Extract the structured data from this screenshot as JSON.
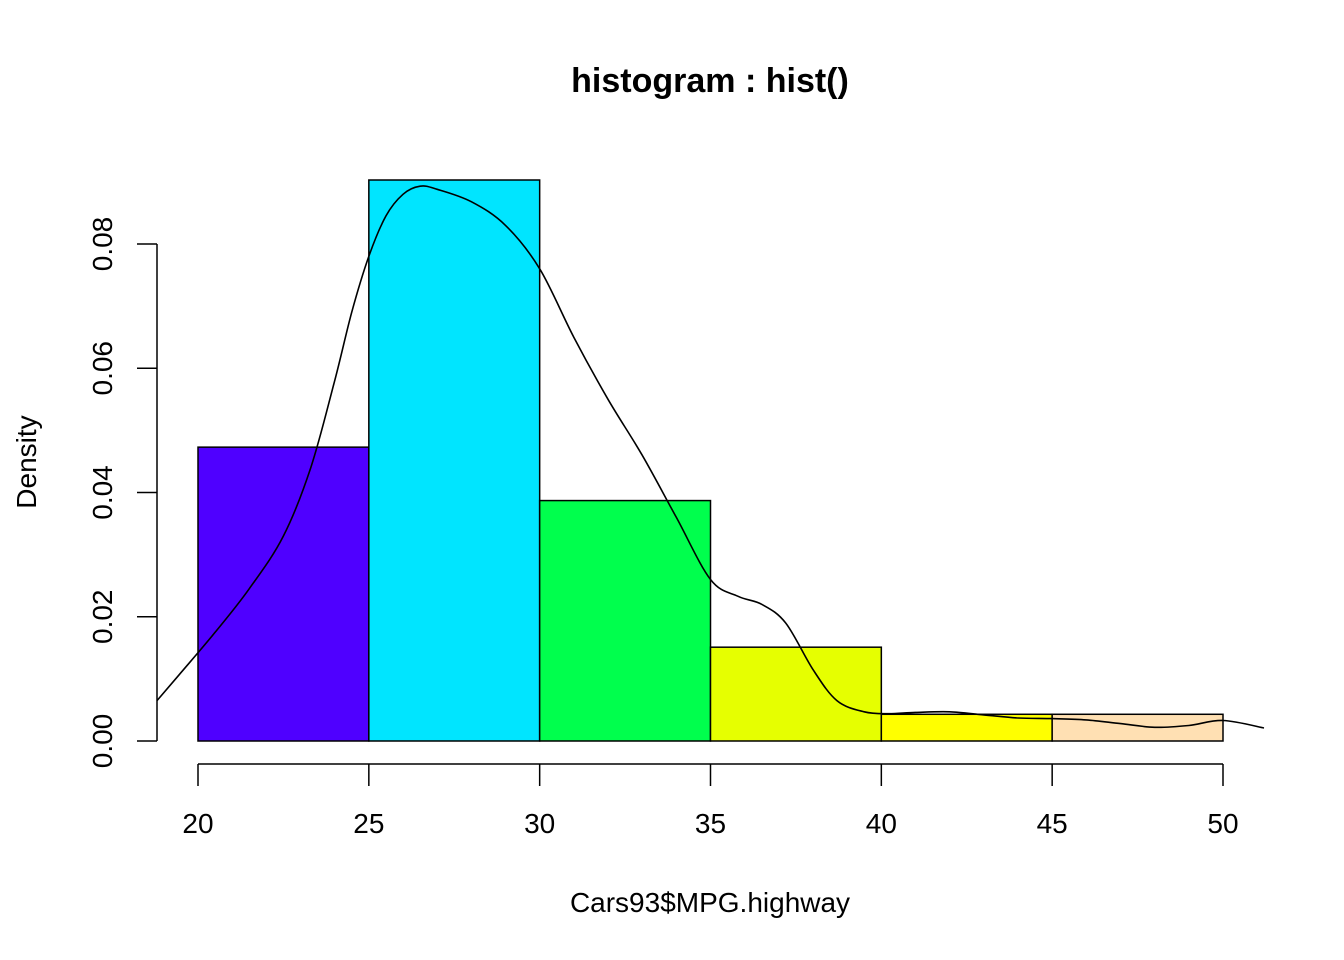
{
  "chart_data": {
    "type": "bar",
    "subtype": "histogram",
    "title": "histogram : hist()",
    "xlabel": "Cars93$MPG.highway",
    "ylabel": "Density",
    "bin_edges": [
      20,
      25,
      30,
      35,
      40,
      45,
      50
    ],
    "values": [
      0.0473,
      0.0903,
      0.0387,
      0.0151,
      0.0043,
      0.0043
    ],
    "bar_colors": [
      "#4F00FF",
      "#00E5FF",
      "#00FF4D",
      "#E6FF00",
      "#FFFF00",
      "#FFE0B3"
    ],
    "xlim": [
      18.8,
      51.2
    ],
    "ylim": [
      0,
      0.0903
    ],
    "x_ticks": [
      20,
      25,
      30,
      35,
      40,
      45,
      50
    ],
    "x_tick_labels": [
      "20",
      "25",
      "30",
      "35",
      "40",
      "45",
      "50"
    ],
    "y_ticks": [
      0,
      0.02,
      0.04,
      0.06,
      0.08
    ],
    "y_tick_labels": [
      "0.00",
      "0.02",
      "0.04",
      "0.06",
      "0.08"
    ],
    "grid": false,
    "density_curve": {
      "x": [
        18.8,
        19.5,
        20.5,
        21.5,
        22.5,
        23.3,
        24,
        24.5,
        25,
        25.5,
        26,
        26.5,
        27,
        28,
        29,
        30,
        31,
        32,
        33,
        34,
        35,
        35.8,
        36.5,
        37.2,
        38,
        38.7,
        39.5,
        40.2,
        41,
        42,
        43,
        44,
        45,
        46,
        47,
        48,
        49,
        50,
        51.2
      ],
      "y": [
        0.0065,
        0.011,
        0.0175,
        0.0245,
        0.033,
        0.044,
        0.058,
        0.069,
        0.078,
        0.0845,
        0.088,
        0.0893,
        0.0888,
        0.0868,
        0.083,
        0.076,
        0.065,
        0.055,
        0.046,
        0.036,
        0.026,
        0.0233,
        0.022,
        0.019,
        0.0115,
        0.0065,
        0.0047,
        0.0044,
        0.0046,
        0.0047,
        0.0042,
        0.0037,
        0.0036,
        0.0034,
        0.0028,
        0.0022,
        0.0025,
        0.0033,
        0.0021
      ],
      "color": "#000000"
    }
  }
}
